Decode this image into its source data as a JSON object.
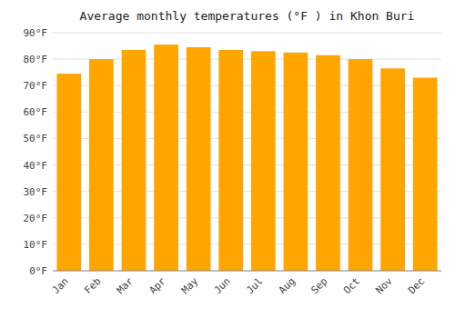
{
  "chart_data": {
    "type": "bar",
    "title": "Average monthly temperatures (°F ) in Khon Buri",
    "categories": [
      "Jan",
      "Feb",
      "Mar",
      "Apr",
      "May",
      "Jun",
      "Jul",
      "Aug",
      "Sep",
      "Oct",
      "Nov",
      "Dec"
    ],
    "values": [
      74.5,
      80.0,
      83.5,
      85.5,
      84.5,
      83.5,
      83.0,
      82.5,
      81.5,
      80.0,
      76.5,
      73.0
    ],
    "color": "#FFA500",
    "ylim": [
      0,
      90
    ],
    "yticks": [
      {
        "value": 0,
        "label": "0°F"
      },
      {
        "value": 10,
        "label": "10°F"
      },
      {
        "value": 20,
        "label": "20°F"
      },
      {
        "value": 30,
        "label": "30°F"
      },
      {
        "value": 40,
        "label": "40°F"
      },
      {
        "value": 50,
        "label": "50°F"
      },
      {
        "value": 60,
        "label": "60°F"
      },
      {
        "value": 70,
        "label": "70°F"
      },
      {
        "value": 80,
        "label": "80°F"
      },
      {
        "value": 90,
        "label": "90°F"
      }
    ],
    "grid": true
  }
}
